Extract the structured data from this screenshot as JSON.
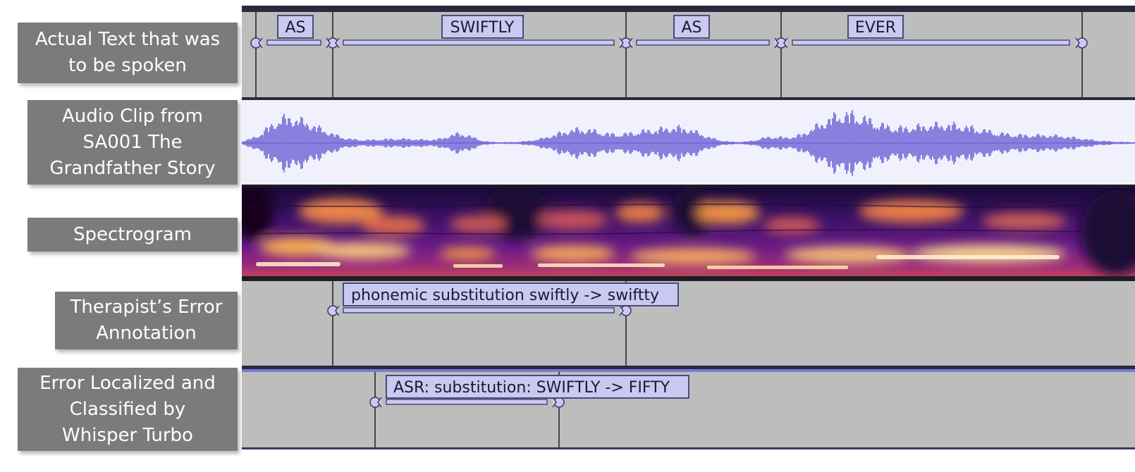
{
  "row_labels": {
    "actual_text": "Actual Text that was\nto be spoken",
    "audio_clip": "Audio Clip from\nSA001 The\nGrandfather Story",
    "spectrogram": "Spectrogram",
    "therapist": "Therapist’s Error\nAnnotation",
    "whisper": "Error Localized and\nClassified by\nWhisper Turbo"
  },
  "words": [
    {
      "text": "AS"
    },
    {
      "text": "SWIFTLY"
    },
    {
      "text": "AS"
    },
    {
      "text": "EVER"
    }
  ],
  "therapist_annotation": "phonemic substitution swiftly -> swiftty",
  "asr_annotation": "ASR: substitution: SWIFTLY -> FIFTY",
  "colors": {
    "label_bg": "#7b7b7b",
    "track_bg": "#bdbdbd",
    "tag_fill": "#c9c9f2",
    "tag_border": "#4a4a7a",
    "waveform": "#6f63d6",
    "waveform_bg": "#f1f1fd"
  }
}
